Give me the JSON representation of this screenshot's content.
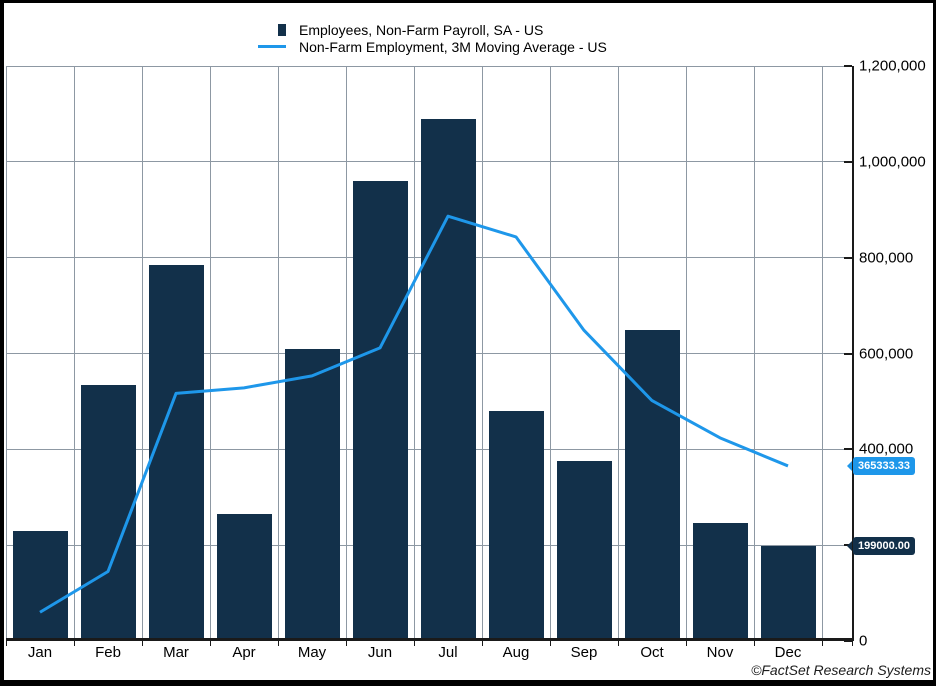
{
  "legend": {
    "items": [
      {
        "marker": "square-icon"
      },
      {
        "marker": "line-icon"
      }
    ]
  },
  "chart_data": {
    "type": "bar",
    "categories": [
      "Jan",
      "Feb",
      "Mar",
      "Apr",
      "May",
      "Jun",
      "Jul",
      "Aug",
      "Sep",
      "Oct",
      "Nov",
      "Dec"
    ],
    "series": [
      {
        "name": "Employees, Non-Farm Payroll, SA - US",
        "type": "bar",
        "color": "#12304a",
        "values": [
          230000,
          535000,
          785000,
          265000,
          610000,
          960000,
          1090000,
          480000,
          375000,
          650000,
          247000,
          199000
        ]
      },
      {
        "name": "Non-Farm Employment, 3M Moving Average - US",
        "type": "line",
        "color": "#1e97ea",
        "values": [
          60000,
          145000,
          516666.67,
          528333.33,
          553333.33,
          611666.67,
          886666.67,
          843333.33,
          648333.33,
          501666.67,
          424000,
          365333.33
        ]
      }
    ],
    "title": "",
    "xlabel": "",
    "ylabel": "",
    "ylim": [
      0,
      1200000
    ],
    "y_axis_side": "right",
    "grid": true,
    "legend_position": "top-center",
    "y_ticks": [
      {
        "value": 0,
        "label": "0"
      },
      {
        "value": 200000,
        "label": "200,000"
      },
      {
        "value": 400000,
        "label": "400,000"
      },
      {
        "value": 600000,
        "label": "600,000"
      },
      {
        "value": 800000,
        "label": "800,000"
      },
      {
        "value": 1000000,
        "label": "1,000,000"
      },
      {
        "value": 1200000,
        "label": "1,200,000"
      }
    ],
    "last_value_labels": [
      {
        "series_index": 1,
        "text": "365333.33",
        "value": 365333.33,
        "bg": "#1e97ea"
      },
      {
        "series_index": 0,
        "text": "199000.00",
        "value": 199000,
        "bg": "#12304a"
      }
    ]
  },
  "colors": {
    "background": "#ffffff",
    "border": "#000000",
    "grid": "#8d98a3",
    "axis": "#1a1a1a",
    "bar": "#12304a",
    "line": "#1e97ea"
  },
  "branding": {
    "credit": "©FactSet Research Systems"
  }
}
